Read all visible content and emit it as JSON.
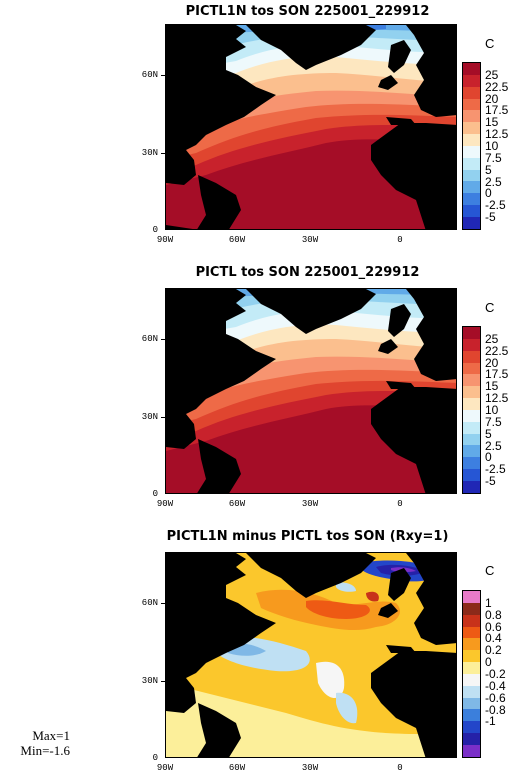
{
  "panels": [
    {
      "title": "PICTL1N tos SON 225001_229912",
      "unit": "C",
      "colorbar": {
        "labels": [
          "25",
          "22.5",
          "20",
          "17.5",
          "15",
          "12.5",
          "10",
          "7.5",
          "5",
          "2.5",
          "0",
          "-2.5",
          "-5"
        ],
        "colors": [
          "#a50d27",
          "#c8222c",
          "#e0452f",
          "#ee6a47",
          "#f79470",
          "#fbbf8e",
          "#fde7c0",
          "#eef9fc",
          "#c3ebf7",
          "#92d1ef",
          "#61aae8",
          "#3d7fe0",
          "#2656d4",
          "#2027b5"
        ]
      }
    },
    {
      "title": "PICTL tos SON 225001_229912",
      "unit": "C",
      "colorbar": {
        "labels": [
          "25",
          "22.5",
          "20",
          "17.5",
          "15",
          "12.5",
          "10",
          "7.5",
          "5",
          "2.5",
          "0",
          "-2.5",
          "-5"
        ],
        "colors": [
          "#a50d27",
          "#c8222c",
          "#e0452f",
          "#ee6a47",
          "#f79470",
          "#fbbf8e",
          "#fde7c0",
          "#eef9fc",
          "#c3ebf7",
          "#92d1ef",
          "#61aae8",
          "#3d7fe0",
          "#2656d4",
          "#2027b5"
        ]
      }
    },
    {
      "title": "PICTL1N minus PICTL tos SON (Rxy=1)",
      "unit": "C",
      "colorbar": {
        "labels": [
          "1",
          "0.8",
          "0.6",
          "0.4",
          "0.2",
          "0",
          "-0.2",
          "-0.4",
          "-0.6",
          "-0.8",
          "-1"
        ],
        "colors": [
          "#e87ac8",
          "#8b2a1a",
          "#c8321a",
          "#ee5a14",
          "#f79a1e",
          "#fbc72c",
          "#fcef9a",
          "#f6f6f6",
          "#bfe0f3",
          "#7fb8e6",
          "#3b7fdc",
          "#2346c9",
          "#2521a8",
          "#7a2fc8"
        ]
      }
    }
  ],
  "lat_labels": [
    "60N",
    "30N",
    "0"
  ],
  "lon_labels": [
    "90W",
    "60W",
    "30W",
    "0"
  ],
  "stats": {
    "max": "Max=1",
    "min": "Min=-1.6"
  }
}
